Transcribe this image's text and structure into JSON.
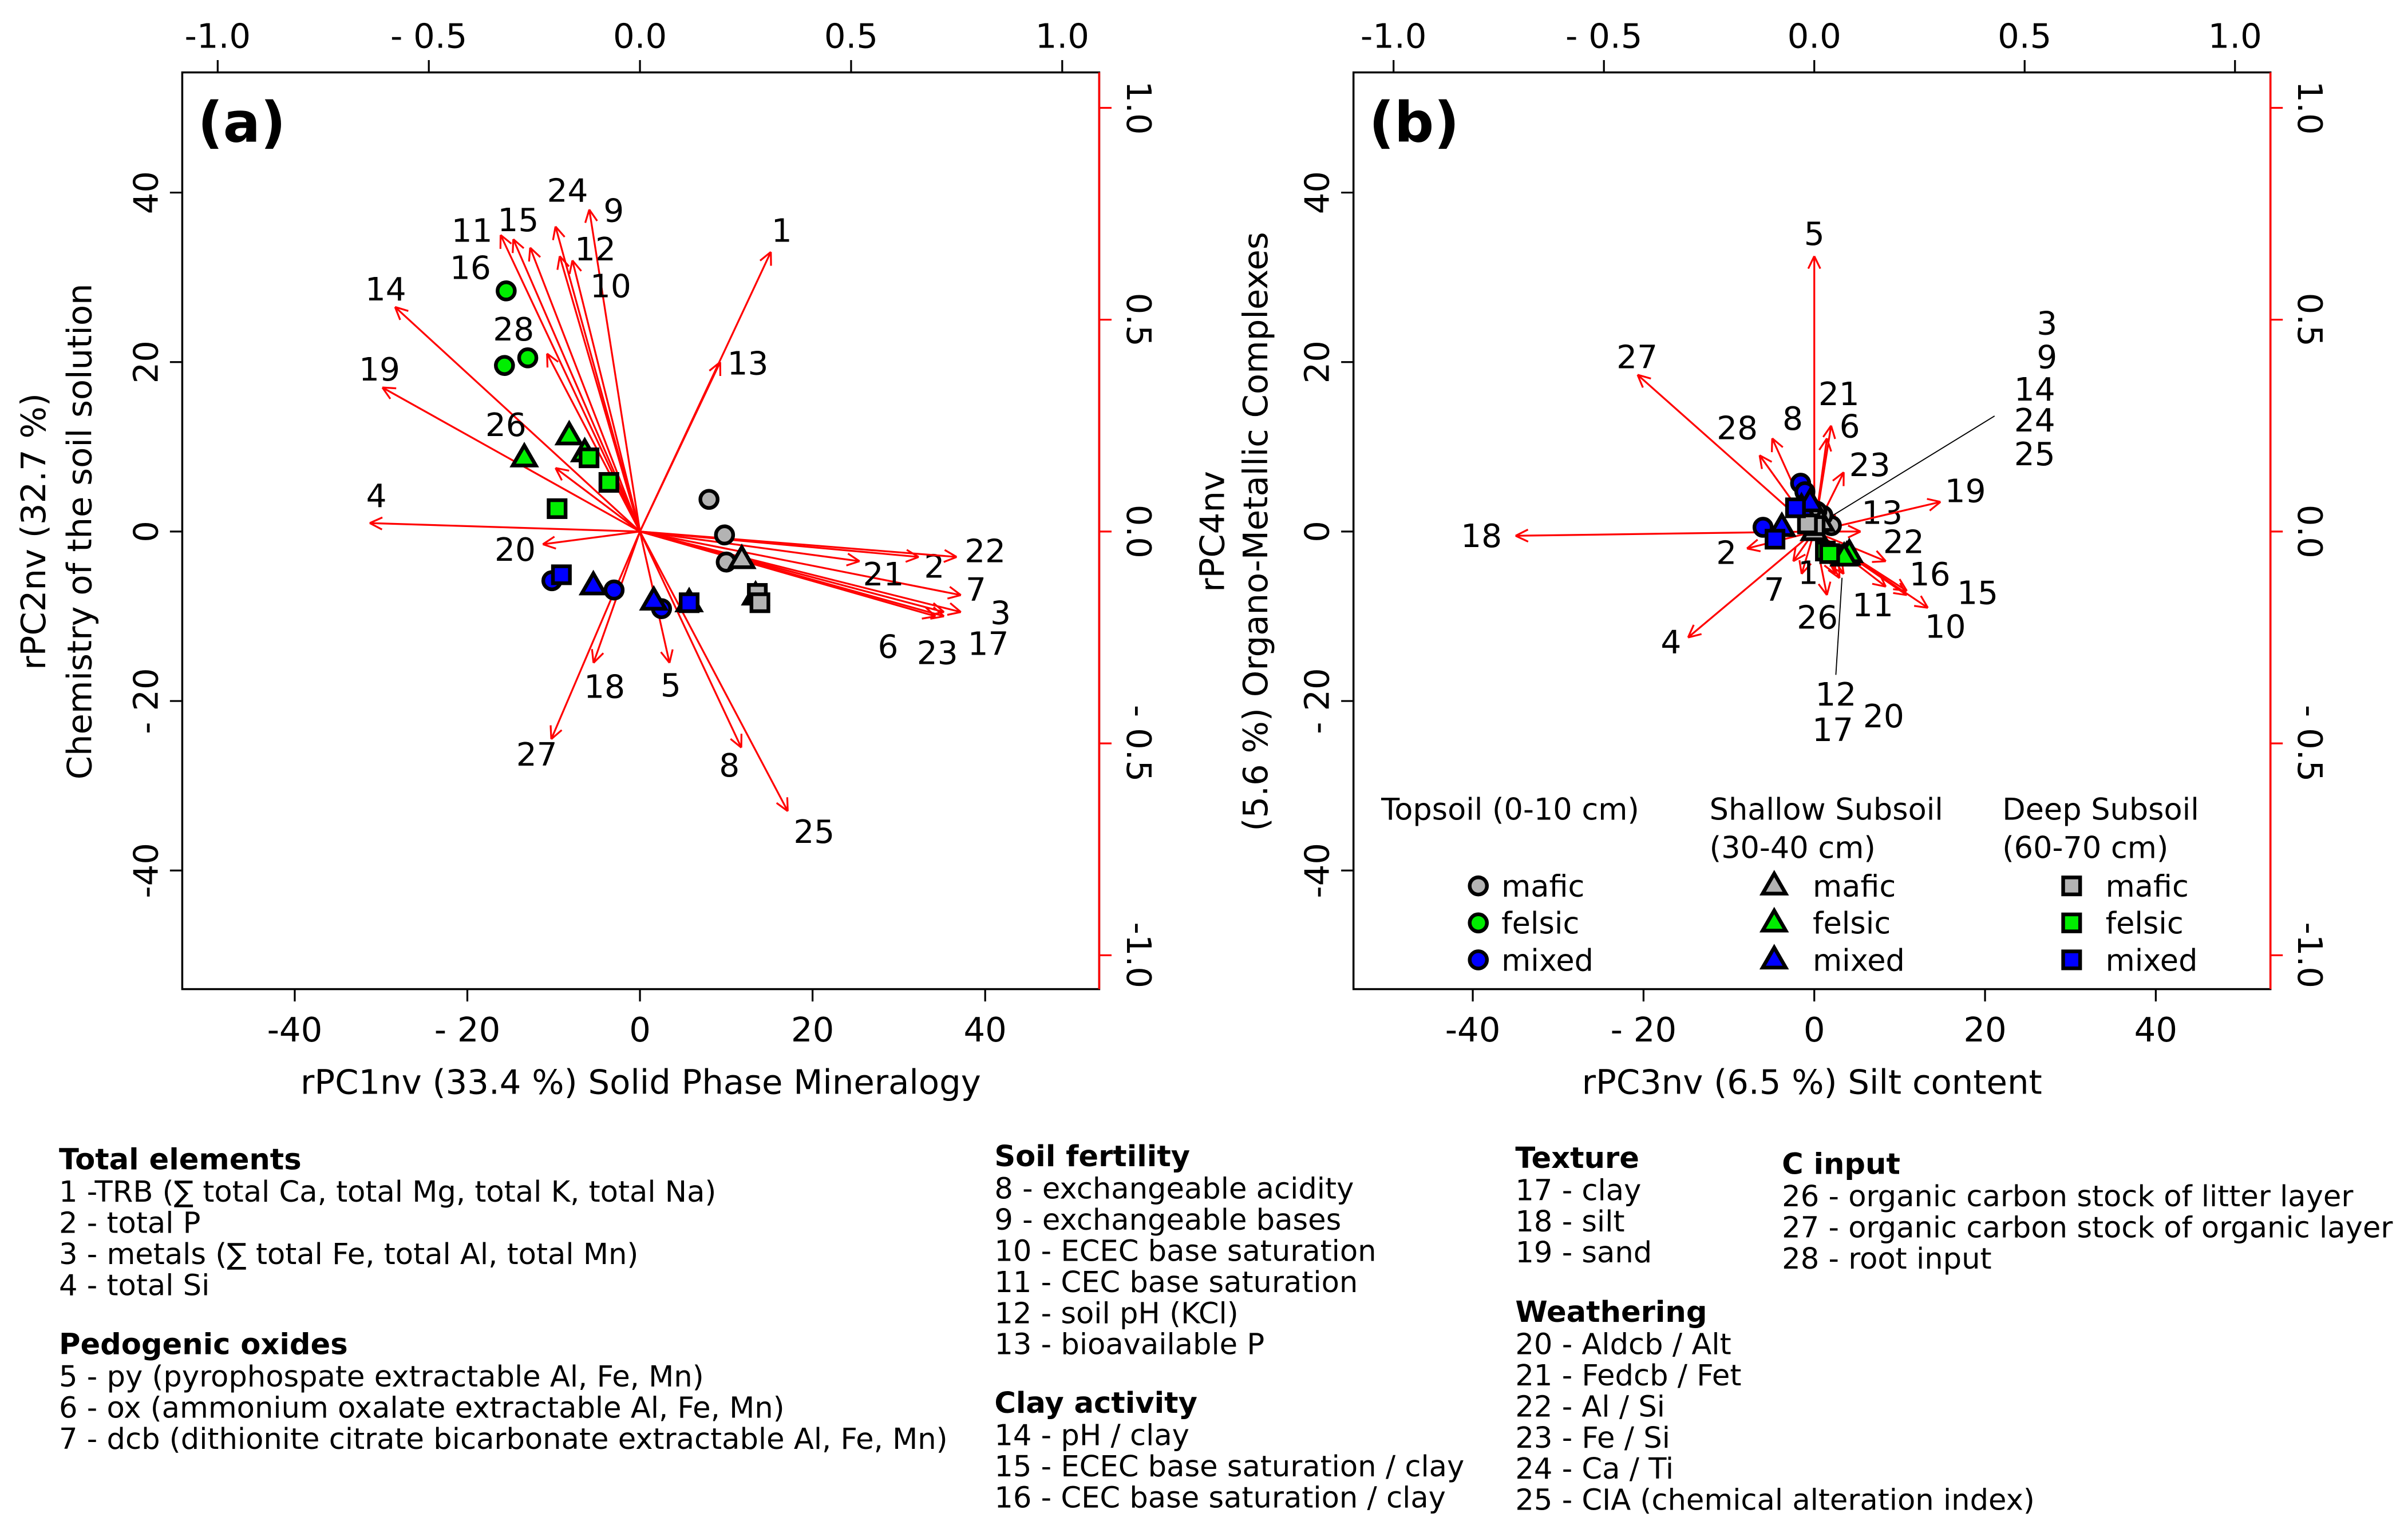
{
  "colors": {
    "mafic": "#b3b3b3",
    "felsic": "#00ee00",
    "mixed": "#0000ff",
    "arrow": "#ff0000",
    "outline": "#000000"
  },
  "chart_data": [
    {
      "type": "scatter",
      "subtype": "biplot",
      "panel_label": "(a)",
      "xlabel": "rPC1nv (33.4 %) Solid Phase Mineralogy",
      "ylabel": [
        "rPC2nv (32.7 %)",
        "Chemistry of the soil solution"
      ],
      "xlim": [
        -53,
        53
      ],
      "ylim": [
        -54,
        54
      ],
      "bottom_ticks": [
        {
          "value": -40,
          "label": "-40"
        },
        {
          "value": -20,
          "label": "- 20"
        },
        {
          "value": 0,
          "label": "0"
        },
        {
          "value": 20,
          "label": "20"
        },
        {
          "value": 40,
          "label": "40"
        }
      ],
      "left_ticks": [
        {
          "value": 40,
          "label": "40"
        },
        {
          "value": 20,
          "label": "20"
        },
        {
          "value": 0,
          "label": "0"
        },
        {
          "value": -20,
          "label": "- 20"
        },
        {
          "value": -40,
          "label": "-40"
        }
      ],
      "top_ticks": [
        {
          "value": -1.0,
          "label": "-1.0"
        },
        {
          "value": -0.5,
          "label": "- 0.5"
        },
        {
          "value": 0.0,
          "label": "0.0"
        },
        {
          "value": 0.5,
          "label": "0.5"
        },
        {
          "value": 1.0,
          "label": "1.0"
        }
      ],
      "right_ticks": [
        {
          "value": 1.0,
          "label": "1.0"
        },
        {
          "value": 0.5,
          "label": "0.5"
        },
        {
          "value": 0.0,
          "label": "0.0"
        },
        {
          "value": -0.5,
          "label": "- 0.5"
        },
        {
          "value": -1.0,
          "label": "-1.0"
        }
      ],
      "grid": false,
      "points": [
        {
          "horizon": "topsoil",
          "material": "mafic",
          "xy": [
            [
              8.0,
              3.8
            ],
            [
              9.8,
              -0.4
            ],
            [
              10.0,
              -3.6
            ]
          ]
        },
        {
          "horizon": "topsoil",
          "material": "felsic",
          "xy": [
            [
              -15.5,
              28.4
            ],
            [
              -15.7,
              19.6
            ],
            [
              -13.0,
              20.5
            ]
          ]
        },
        {
          "horizon": "topsoil",
          "material": "mixed",
          "xy": [
            [
              -10.2,
              -5.8
            ],
            [
              -3.0,
              -6.9
            ],
            [
              2.5,
              -9.1
            ]
          ]
        },
        {
          "horizon": "shallow",
          "material": "mafic",
          "xy": [
            [
              11.8,
              -3.3
            ],
            [
              13.4,
              -7.6
            ]
          ]
        },
        {
          "horizon": "shallow",
          "material": "felsic",
          "xy": [
            [
              -13.4,
              8.7
            ],
            [
              -8.2,
              11.3
            ],
            [
              -6.4,
              9.3
            ]
          ]
        },
        {
          "horizon": "shallow",
          "material": "mixed",
          "xy": [
            [
              -5.4,
              -6.4
            ],
            [
              1.6,
              -8.2
            ],
            [
              5.7,
              -8.4
            ]
          ]
        },
        {
          "horizon": "deep",
          "material": "mafic",
          "xy": [
            [
              13.6,
              -7.3
            ],
            [
              13.9,
              -8.4
            ]
          ]
        },
        {
          "horizon": "deep",
          "material": "felsic",
          "xy": [
            [
              -5.9,
              8.7
            ],
            [
              -3.6,
              5.8
            ],
            [
              -9.6,
              2.7
            ]
          ]
        },
        {
          "horizon": "deep",
          "material": "mixed",
          "xy": [
            [
              -9.1,
              -5.1
            ],
            [
              5.7,
              -8.4
            ]
          ]
        }
      ],
      "loadings": [
        {
          "id": "1",
          "x": 0.31,
          "y": 0.66
        },
        {
          "id": "2",
          "x": 0.66,
          "y": -0.06
        },
        {
          "id": "3",
          "x": 0.76,
          "y": -0.19
        },
        {
          "id": "4",
          "x": -0.64,
          "y": 0.02
        },
        {
          "id": "5",
          "x": 0.07,
          "y": -0.31
        },
        {
          "id": "6",
          "x": 0.7,
          "y": -0.2
        },
        {
          "id": "7",
          "x": 0.76,
          "y": -0.15
        },
        {
          "id": "8",
          "x": 0.24,
          "y": -0.51
        },
        {
          "id": "9",
          "x": -0.12,
          "y": 0.76
        },
        {
          "id": "10",
          "x": -0.16,
          "y": 0.64
        },
        {
          "id": "11",
          "x": -0.33,
          "y": 0.7
        },
        {
          "id": "12",
          "x": -0.19,
          "y": 0.65
        },
        {
          "id": "13",
          "x": 0.19,
          "y": 0.4
        },
        {
          "id": "14",
          "x": -0.58,
          "y": 0.53
        },
        {
          "id": "15",
          "x": -0.3,
          "y": 0.69
        },
        {
          "id": "16",
          "x": -0.26,
          "y": 0.67
        },
        {
          "id": "17",
          "x": 0.72,
          "y": -0.2
        },
        {
          "id": "18",
          "x": -0.11,
          "y": -0.31
        },
        {
          "id": "19",
          "x": -0.61,
          "y": 0.34
        },
        {
          "id": "20",
          "x": -0.23,
          "y": -0.03
        },
        {
          "id": "21",
          "x": 0.52,
          "y": -0.07
        },
        {
          "id": "22",
          "x": 0.75,
          "y": -0.06
        },
        {
          "id": "23",
          "x": 0.72,
          "y": -0.19
        },
        {
          "id": "24",
          "x": -0.2,
          "y": 0.72
        },
        {
          "id": "25",
          "x": 0.35,
          "y": -0.66
        },
        {
          "id": "26",
          "x": -0.2,
          "y": 0.15
        },
        {
          "id": "27",
          "x": -0.21,
          "y": -0.49
        },
        {
          "id": "28",
          "x": -0.22,
          "y": 0.42
        }
      ]
    },
    {
      "type": "scatter",
      "subtype": "biplot",
      "panel_label": "(b)",
      "xlabel": "rPC3nv (6.5 %) Silt content",
      "ylabel": [
        "rPC4nv",
        "(5.6 %) Organo-Metallic Complexes"
      ],
      "xlim": [
        -53,
        53
      ],
      "ylim": [
        -54,
        54
      ],
      "bottom_ticks": [
        {
          "value": -40,
          "label": "-40"
        },
        {
          "value": -20,
          "label": "- 20"
        },
        {
          "value": 0,
          "label": "0"
        },
        {
          "value": 20,
          "label": "20"
        },
        {
          "value": 40,
          "label": "40"
        }
      ],
      "left_ticks": [
        {
          "value": 40,
          "label": "40"
        },
        {
          "value": 20,
          "label": "20"
        },
        {
          "value": 0,
          "label": "0"
        },
        {
          "value": -20,
          "label": "- 20"
        },
        {
          "value": -40,
          "label": "-40"
        }
      ],
      "top_ticks": [
        {
          "value": -1.0,
          "label": "-1.0"
        },
        {
          "value": -0.5,
          "label": "- 0.5"
        },
        {
          "value": 0.0,
          "label": "0.0"
        },
        {
          "value": 0.5,
          "label": "0.5"
        },
        {
          "value": 1.0,
          "label": "1.0"
        }
      ],
      "right_ticks": [
        {
          "value": 1.0,
          "label": "1.0"
        },
        {
          "value": 0.5,
          "label": "0.5"
        },
        {
          "value": 0.0,
          "label": "0.0"
        },
        {
          "value": -0.5,
          "label": "- 0.5"
        },
        {
          "value": -1.0,
          "label": "-1.0"
        }
      ],
      "grid": false,
      "points": [
        {
          "horizon": "topsoil",
          "material": "mafic",
          "xy": [
            [
              2.0,
              0.7
            ],
            [
              1.0,
              1.9
            ],
            [
              0.3,
              2.4
            ]
          ]
        },
        {
          "horizon": "topsoil",
          "material": "felsic",
          "xy": [
            [
              3.1,
              -2.7
            ]
          ]
        },
        {
          "horizon": "topsoil",
          "material": "mixed",
          "xy": [
            [
              -6.0,
              0.5
            ],
            [
              -1.6,
              5.7
            ],
            [
              -1.1,
              4.7
            ]
          ]
        },
        {
          "horizon": "shallow",
          "material": "mafic",
          "xy": [
            [
              0.0,
              0.0
            ],
            [
              0.8,
              1.1
            ]
          ]
        },
        {
          "horizon": "shallow",
          "material": "felsic",
          "xy": [
            [
              3.8,
              -2.9
            ],
            [
              4.1,
              -2.6
            ],
            [
              3.5,
              -3.0
            ]
          ]
        },
        {
          "horizon": "shallow",
          "material": "mixed",
          "xy": [
            [
              -3.8,
              0.5
            ],
            [
              -1.5,
              2.8
            ],
            [
              -0.5,
              3.4
            ]
          ]
        },
        {
          "horizon": "deep",
          "material": "mafic",
          "xy": [
            [
              0.1,
              0.7
            ],
            [
              -0.8,
              0.9
            ]
          ]
        },
        {
          "horizon": "deep",
          "material": "felsic",
          "xy": [
            [
              1.3,
              -2.3
            ],
            [
              1.8,
              -2.6
            ]
          ]
        },
        {
          "horizon": "deep",
          "material": "mixed",
          "xy": [
            [
              -4.6,
              -0.9
            ],
            [
              -2.2,
              2.8
            ]
          ]
        }
      ],
      "loadings": [
        {
          "id": "1",
          "x": -0.03,
          "y": -0.1
        },
        {
          "id": "2",
          "x": -0.16,
          "y": -0.04
        },
        {
          "id": "3",
          "x": 0.05,
          "y": 0.03
        },
        {
          "id": "4",
          "x": -0.3,
          "y": -0.25
        },
        {
          "id": "5",
          "x": 0.0,
          "y": 0.65
        },
        {
          "id": "6",
          "x": 0.04,
          "y": 0.25
        },
        {
          "id": "7",
          "x": -0.05,
          "y": -0.07
        },
        {
          "id": "8",
          "x": -0.1,
          "y": 0.22
        },
        {
          "id": "9",
          "x": 0.04,
          "y": 0.02
        },
        {
          "id": "10",
          "x": 0.27,
          "y": -0.18
        },
        {
          "id": "11",
          "x": 0.17,
          "y": -0.13
        },
        {
          "id": "12",
          "x": 0.05,
          "y": -0.1
        },
        {
          "id": "13",
          "x": 0.11,
          "y": 0.0
        },
        {
          "id": "14",
          "x": 0.05,
          "y": 0.04
        },
        {
          "id": "15",
          "x": 0.22,
          "y": -0.15
        },
        {
          "id": "16",
          "x": 0.22,
          "y": -0.14
        },
        {
          "id": "17",
          "x": 0.06,
          "y": -0.11
        },
        {
          "id": "18",
          "x": -0.71,
          "y": -0.01
        },
        {
          "id": "19",
          "x": 0.3,
          "y": 0.07
        },
        {
          "id": "20",
          "x": 0.07,
          "y": -0.1
        },
        {
          "id": "21",
          "x": 0.03,
          "y": 0.22
        },
        {
          "id": "22",
          "x": 0.17,
          "y": -0.07
        },
        {
          "id": "23",
          "x": 0.07,
          "y": 0.14
        },
        {
          "id": "24",
          "x": 0.04,
          "y": 0.03
        },
        {
          "id": "25",
          "x": 0.05,
          "y": 0.02
        },
        {
          "id": "26",
          "x": 0.03,
          "y": -0.15
        },
        {
          "id": "27",
          "x": -0.42,
          "y": 0.37
        },
        {
          "id": "28",
          "x": -0.13,
          "y": 0.18
        }
      ],
      "legend": {
        "placement": "bottom",
        "groups": [
          {
            "horizon": "topsoil",
            "title": [
              "Topsoil (0-10 cm)"
            ],
            "items": [
              "mafic",
              "felsic",
              "mixed"
            ]
          },
          {
            "horizon": "shallow",
            "title": [
              "Shallow Subsoil",
              "(30-40 cm)"
            ],
            "items": [
              "mafic",
              "felsic",
              "mixed"
            ]
          },
          {
            "horizon": "deep",
            "title": [
              "Deep Subsoil",
              "(60-70 cm)"
            ],
            "items": [
              "mafic",
              "felsic",
              "mixed"
            ]
          }
        ]
      }
    }
  ],
  "variable_key": [
    {
      "title": "Total elements",
      "items": [
        "1 -TRB (∑ total Ca, total Mg, total K, total Na)",
        "2 - total P",
        "3 - metals (∑ total Fe, total Al, total Mn)",
        "4 - total Si"
      ]
    },
    {
      "title": "Pedogenic oxides",
      "items": [
        "5 - py (pyrophospate extractable Al, Fe, Mn)",
        "6 - ox (ammonium oxalate extractable Al, Fe, Mn)",
        "7 - dcb (dithionite citrate bicarbonate extractable Al, Fe, Mn)"
      ]
    },
    {
      "title": "Soil fertility",
      "items": [
        "8 - exchangeable acidity",
        "9 - exchangeable bases",
        "10 - ECEC base saturation",
        "11 - CEC base saturation",
        "12 - soil pH (KCl)",
        "13 - bioavailable P"
      ]
    },
    {
      "title": "Clay activity",
      "items": [
        "14 - pH / clay",
        "15 - ECEC base saturation / clay",
        "16 - CEC base saturation / clay"
      ]
    },
    {
      "title": "Texture",
      "items": [
        "17 - clay",
        "18 - silt",
        "19 - sand"
      ]
    },
    {
      "title": "Weathering",
      "items": [
        "20 - Aldcb / Alt",
        "21 - Fedcb / Fet",
        "22 - Al / Si",
        "23 - Fe / Si",
        "24 - Ca / Ti",
        "25 - CIA (chemical alteration index)"
      ]
    },
    {
      "title": "C input",
      "items": [
        "26 - organic carbon stock of litter layer",
        "27 - organic carbon stock of organic layer",
        "28 - root input"
      ]
    }
  ]
}
